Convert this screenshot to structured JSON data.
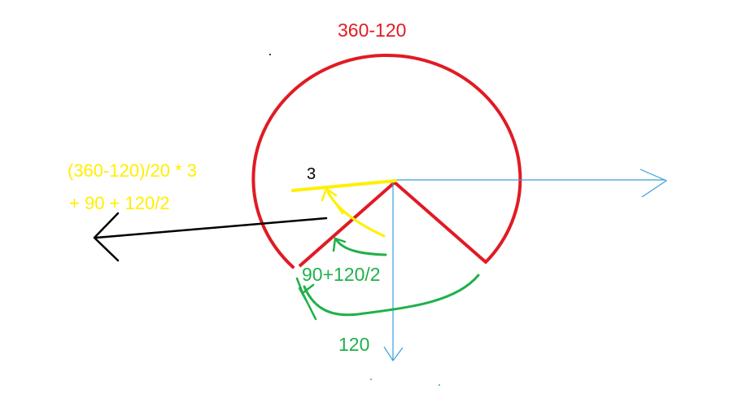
{
  "labels": {
    "top_title": "360-120",
    "formula_line1": "(360-120)/20 * 3",
    "formula_line2": "+ 90 + 120/2",
    "count": "3",
    "green_mid": "90+120/2",
    "green_bottom": "120"
  },
  "colors": {
    "red": "#e01b24",
    "yellow": "#ffef00",
    "green": "#1fb14a",
    "blue": "#3aa0d8",
    "black": "#000000"
  }
}
